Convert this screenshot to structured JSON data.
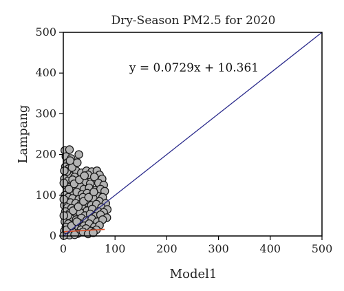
{
  "chart_data": {
    "type": "scatter",
    "title": "Dry-Season PM2.5 for 2020",
    "xlabel": "Model1",
    "ylabel": "Lampang",
    "xlim": [
      0,
      500
    ],
    "ylim": [
      0,
      500
    ],
    "xticks": [
      "0",
      "100",
      "200",
      "300",
      "400",
      "500"
    ],
    "yticks": [
      "0",
      "100",
      "200",
      "300",
      "400",
      "500"
    ],
    "grid": false,
    "annotations": [
      "y = 0.0729x + 10.361"
    ],
    "colors": {
      "points": "#b3b3b3",
      "point_edge": "#1a1a1a",
      "fit_line": "#d9532c",
      "identity_line": "#2b2b8c"
    },
    "lines": [
      {
        "kind": "fit",
        "slope": 0.0729,
        "intercept": 10.361,
        "x_range": [
          0,
          80
        ]
      },
      {
        "kind": "identity",
        "slope": 1,
        "intercept": 0,
        "x_range": [
          0,
          500
        ]
      }
    ],
    "points": [
      [
        3,
        210
      ],
      [
        12,
        212
      ],
      [
        5,
        195
      ],
      [
        15,
        190
      ],
      [
        8,
        180
      ],
      [
        30,
        200
      ],
      [
        20,
        175
      ],
      [
        4,
        170
      ],
      [
        10,
        165
      ],
      [
        25,
        160
      ],
      [
        35,
        155
      ],
      [
        45,
        160
      ],
      [
        55,
        158
      ],
      [
        65,
        160
      ],
      [
        70,
        150
      ],
      [
        75,
        140
      ],
      [
        6,
        150
      ],
      [
        14,
        148
      ],
      [
        22,
        145
      ],
      [
        38,
        142
      ],
      [
        48,
        150
      ],
      [
        60,
        145
      ],
      [
        2,
        140
      ],
      [
        9,
        135
      ],
      [
        18,
        138
      ],
      [
        28,
        130
      ],
      [
        42,
        132
      ],
      [
        52,
        128
      ],
      [
        68,
        130
      ],
      [
        78,
        125
      ],
      [
        4,
        125
      ],
      [
        12,
        120
      ],
      [
        20,
        118
      ],
      [
        32,
        122
      ],
      [
        40,
        115
      ],
      [
        50,
        118
      ],
      [
        62,
        112
      ],
      [
        72,
        115
      ],
      [
        80,
        110
      ],
      [
        7,
        110
      ],
      [
        16,
        105
      ],
      [
        26,
        108
      ],
      [
        36,
        102
      ],
      [
        46,
        105
      ],
      [
        56,
        100
      ],
      [
        66,
        98
      ],
      [
        76,
        95
      ],
      [
        3,
        100
      ],
      [
        10,
        95
      ],
      [
        18,
        92
      ],
      [
        30,
        90
      ],
      [
        38,
        95
      ],
      [
        48,
        88
      ],
      [
        58,
        92
      ],
      [
        70,
        85
      ],
      [
        82,
        80
      ],
      [
        5,
        85
      ],
      [
        14,
        82
      ],
      [
        24,
        80
      ],
      [
        34,
        78
      ],
      [
        44,
        82
      ],
      [
        54,
        75
      ],
      [
        64,
        78
      ],
      [
        74,
        70
      ],
      [
        85,
        65
      ],
      [
        2,
        75
      ],
      [
        8,
        70
      ],
      [
        16,
        68
      ],
      [
        26,
        65
      ],
      [
        36,
        70
      ],
      [
        46,
        62
      ],
      [
        56,
        66
      ],
      [
        68,
        60
      ],
      [
        78,
        58
      ],
      [
        4,
        60
      ],
      [
        12,
        55
      ],
      [
        22,
        52
      ],
      [
        32,
        58
      ],
      [
        42,
        50
      ],
      [
        52,
        54
      ],
      [
        62,
        48
      ],
      [
        72,
        52
      ],
      [
        84,
        45
      ],
      [
        6,
        45
      ],
      [
        15,
        42
      ],
      [
        25,
        40
      ],
      [
        35,
        44
      ],
      [
        45,
        38
      ],
      [
        55,
        42
      ],
      [
        66,
        35
      ],
      [
        76,
        40
      ],
      [
        3,
        35
      ],
      [
        10,
        30
      ],
      [
        20,
        28
      ],
      [
        30,
        32
      ],
      [
        40,
        25
      ],
      [
        50,
        30
      ],
      [
        60,
        22
      ],
      [
        70,
        26
      ],
      [
        5,
        22
      ],
      [
        14,
        18
      ],
      [
        24,
        20
      ],
      [
        34,
        15
      ],
      [
        44,
        18
      ],
      [
        54,
        12
      ],
      [
        64,
        15
      ],
      [
        2,
        12
      ],
      [
        8,
        8
      ],
      [
        18,
        10
      ],
      [
        28,
        6
      ],
      [
        38,
        10
      ],
      [
        48,
        5
      ],
      [
        58,
        8
      ],
      [
        4,
        4
      ],
      [
        12,
        2
      ],
      [
        22,
        3
      ],
      [
        1,
        1
      ],
      [
        6,
        15
      ],
      [
        16,
        25
      ],
      [
        26,
        35
      ],
      [
        9,
        50
      ],
      [
        19,
        62
      ],
      [
        29,
        72
      ],
      [
        39,
        85
      ],
      [
        49,
        95
      ],
      [
        59,
        108
      ],
      [
        11,
        115
      ],
      [
        21,
        128
      ],
      [
        31,
        138
      ],
      [
        41,
        148
      ],
      [
        7,
        158
      ],
      [
        17,
        168
      ],
      [
        27,
        180
      ],
      [
        13,
        185
      ],
      [
        1,
        50
      ],
      [
        1,
        90
      ],
      [
        1,
        130
      ],
      [
        2,
        160
      ]
    ]
  }
}
